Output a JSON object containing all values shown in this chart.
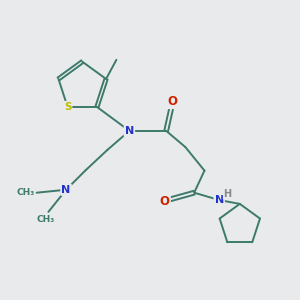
{
  "bg_color": "#e8eaec",
  "bond_color": "#3d7a6a",
  "N_color": "#2233cc",
  "O_color": "#cc2200",
  "S_color": "#bbbb00",
  "H_color": "#888888",
  "line_width": 1.4,
  "fig_size": [
    3.0,
    3.0
  ],
  "dpi": 100,
  "xlim": [
    0,
    10
  ],
  "ylim": [
    0,
    10
  ]
}
